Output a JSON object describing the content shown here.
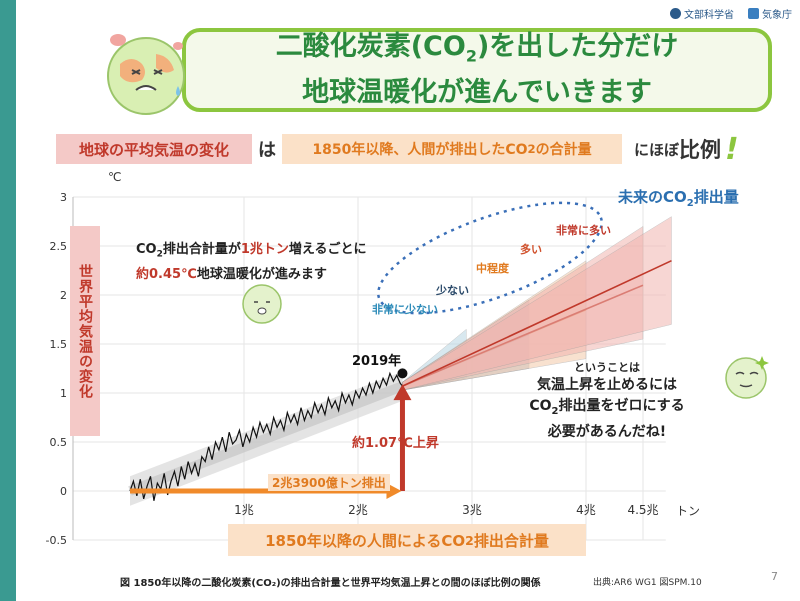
{
  "logos": {
    "mext": "文部科学省",
    "jma": "気象庁"
  },
  "title": {
    "line1a": "二酸化炭素(CO",
    "line1sub": "2",
    "line1b": ")を出した分だけ",
    "line2": "地球温暖化が進んでいきます"
  },
  "subtitle": {
    "chip1": "地球の平均気温の変化",
    "wa": "は",
    "chip2a": "1850年以降、人間が排出したCO",
    "chip2sub": "2",
    "chip2b": "の合計量",
    "nihobo": "にほぼ",
    "hirei": "比例",
    "bang": "!"
  },
  "yaxis_chip": "世界平均気温の変化",
  "xaxis_chip": {
    "a": "1850年以降の人間によるCO",
    "sub": "2",
    "b": "排出合計量"
  },
  "unit_c": "℃",
  "ton": "トン",
  "note1": {
    "a": "CO",
    "sub": "2",
    "b": "排出合計量が",
    "c": "1兆トン",
    "d": "増えるごとに",
    "e": "約0.45℃",
    "f": "地球温暖化が進みます"
  },
  "note2": {
    "small": "ということは",
    "l1": "気温上昇を止めるには",
    "l2a": "CO",
    "l2sub": "2",
    "l2b": "排出量をゼロにする",
    "l3": "必要があるんだね!"
  },
  "future": {
    "a": "未来のCO",
    "sub": "2",
    "b": "排出量"
  },
  "scenarios": {
    "very_high": "非常に多い",
    "high": "多い",
    "intermediate": "中程度",
    "low": "少ない",
    "very_low": "非常に少ない"
  },
  "annotations": {
    "year2019": "2019年",
    "rise": "約1.07℃上昇",
    "emitted": "2兆3900億トン排出"
  },
  "caption": "図 1850年以降の二酸化炭素(CO₂)の排出合計量と世界平均気温上昇との間のほぼ比例の関係",
  "caption_src": "出典:AR6 WG1 図SPM.10",
  "page": "7",
  "colors": {
    "accent_green": "#8cc63f",
    "title_green": "#2b8a3e",
    "red": "#c0392b",
    "orange": "#e07a1f",
    "blue": "#2b6fb0",
    "teal": "#3a9a91"
  },
  "chart_data": {
    "type": "line",
    "x_unit": "trillion tonnes CO2",
    "y_unit": "℃",
    "xlim": [
      -0.5,
      4.7
    ],
    "ylim": [
      -0.5,
      3
    ],
    "yticks": [
      -0.5,
      0,
      0.5,
      1,
      1.5,
      2,
      2.5,
      3
    ],
    "ytick_labels": [
      "-0.5",
      "0",
      "0.5",
      "1",
      "1.5",
      "2",
      "2.5",
      "3"
    ],
    "xticks": [
      1,
      2,
      3,
      4,
      4.5
    ],
    "xtick_labels": [
      "1兆",
      "2兆",
      "3兆",
      "4兆",
      "4.5兆"
    ],
    "historical": {
      "x": [
        0.0,
        0.03,
        0.06,
        0.09,
        0.12,
        0.15,
        0.18,
        0.21,
        0.24,
        0.27,
        0.3,
        0.33,
        0.36,
        0.39,
        0.42,
        0.45,
        0.48,
        0.51,
        0.54,
        0.57,
        0.6,
        0.63,
        0.66,
        0.69,
        0.72,
        0.75,
        0.78,
        0.81,
        0.84,
        0.87,
        0.9,
        0.93,
        0.96,
        0.99,
        1.02,
        1.05,
        1.08,
        1.11,
        1.14,
        1.17,
        1.2,
        1.23,
        1.26,
        1.29,
        1.32,
        1.35,
        1.38,
        1.41,
        1.44,
        1.47,
        1.5,
        1.53,
        1.56,
        1.59,
        1.62,
        1.65,
        1.68,
        1.71,
        1.74,
        1.77,
        1.8,
        1.83,
        1.86,
        1.89,
        1.92,
        1.95,
        1.98,
        2.01,
        2.04,
        2.07,
        2.1,
        2.13,
        2.16,
        2.19,
        2.22,
        2.25,
        2.28,
        2.31,
        2.34,
        2.37,
        2.39
      ],
      "y": [
        0.0,
        0.1,
        -0.05,
        0.12,
        -0.08,
        0.05,
        0.15,
        -0.1,
        0.08,
        0.02,
        0.18,
        -0.04,
        0.1,
        0.2,
        0.05,
        0.25,
        0.12,
        0.3,
        0.18,
        0.28,
        0.15,
        0.35,
        0.3,
        0.45,
        0.32,
        0.5,
        0.42,
        0.55,
        0.4,
        0.6,
        0.48,
        0.52,
        0.62,
        0.45,
        0.58,
        0.5,
        0.65,
        0.55,
        0.7,
        0.6,
        0.68,
        0.58,
        0.75,
        0.65,
        0.72,
        0.62,
        0.8,
        0.7,
        0.78,
        0.68,
        0.85,
        0.72,
        0.82,
        0.75,
        0.9,
        0.8,
        0.88,
        0.78,
        0.95,
        0.85,
        0.92,
        0.82,
        1.0,
        0.9,
        0.98,
        0.88,
        1.02,
        0.95,
        1.05,
        0.98,
        1.1,
        1.0,
        1.12,
        1.05,
        1.15,
        1.08,
        1.2,
        1.12,
        1.18,
        1.1,
        1.07
      ]
    },
    "historical_band": {
      "x": [
        0,
        2.39
      ],
      "lower": [
        -0.15,
        0.92
      ],
      "upper": [
        0.15,
        1.22
      ]
    },
    "trend": {
      "x": [
        0,
        2.39
      ],
      "y": [
        0,
        1.07
      ]
    },
    "scenarios": [
      {
        "name": "非常に少ない",
        "color": "#4aa9c8",
        "end_x": 2.95,
        "end_y": 1.4,
        "band": [
          1.15,
          1.65
        ]
      },
      {
        "name": "少ない",
        "color": "#5a7fa8",
        "end_x": 3.5,
        "end_y": 1.6,
        "band": [
          1.25,
          1.95
        ]
      },
      {
        "name": "中程度",
        "color": "#e07a1f",
        "end_x": 4.0,
        "end_y": 1.85,
        "band": [
          1.35,
          2.35
        ]
      },
      {
        "name": "多い",
        "color": "#c0392b",
        "end_x": 4.5,
        "end_y": 2.1,
        "band": [
          1.55,
          2.7
        ]
      },
      {
        "name": "非常に多い",
        "color": "#c0392b",
        "end_x": 4.75,
        "end_y": 2.35,
        "band": [
          1.7,
          2.8
        ]
      }
    ],
    "annotations": [
      {
        "label": "2019年",
        "x": 2.39,
        "y": 1.2
      },
      {
        "label": "約1.07℃上昇"
      },
      {
        "label": "2兆3900億トン排出"
      }
    ]
  }
}
